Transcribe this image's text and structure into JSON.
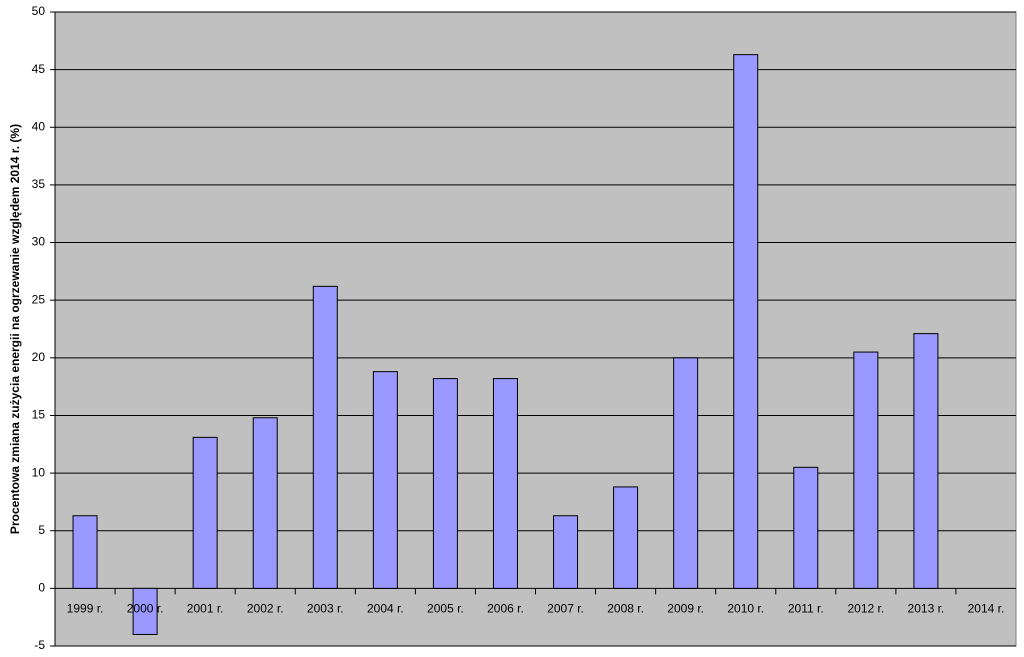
{
  "chart_data": {
    "type": "bar",
    "y_label": "Procentowa zmiana zużycia energii na ogrzewanie względem 2014 r. (%)",
    "categories": [
      "1999 r.",
      "2000 r.",
      "2001 r.",
      "2002 r.",
      "2003 r.",
      "2004 r.",
      "2005 r.",
      "2006 r.",
      "2007 r.",
      "2008 r.",
      "2009 r.",
      "2010 r.",
      "2011 r.",
      "2012 r.",
      "2013 r.",
      "2014 r."
    ],
    "values": [
      6.3,
      -4.0,
      13.1,
      14.8,
      26.2,
      18.8,
      18.2,
      18.2,
      6.3,
      8.8,
      20.0,
      46.3,
      10.5,
      20.5,
      22.1,
      0
    ],
    "color": "#9999ff",
    "ylim": [
      -5,
      50
    ],
    "yticks": [
      -5,
      0,
      5,
      10,
      15,
      20,
      25,
      30,
      35,
      40,
      45,
      50
    ],
    "grid": true
  }
}
